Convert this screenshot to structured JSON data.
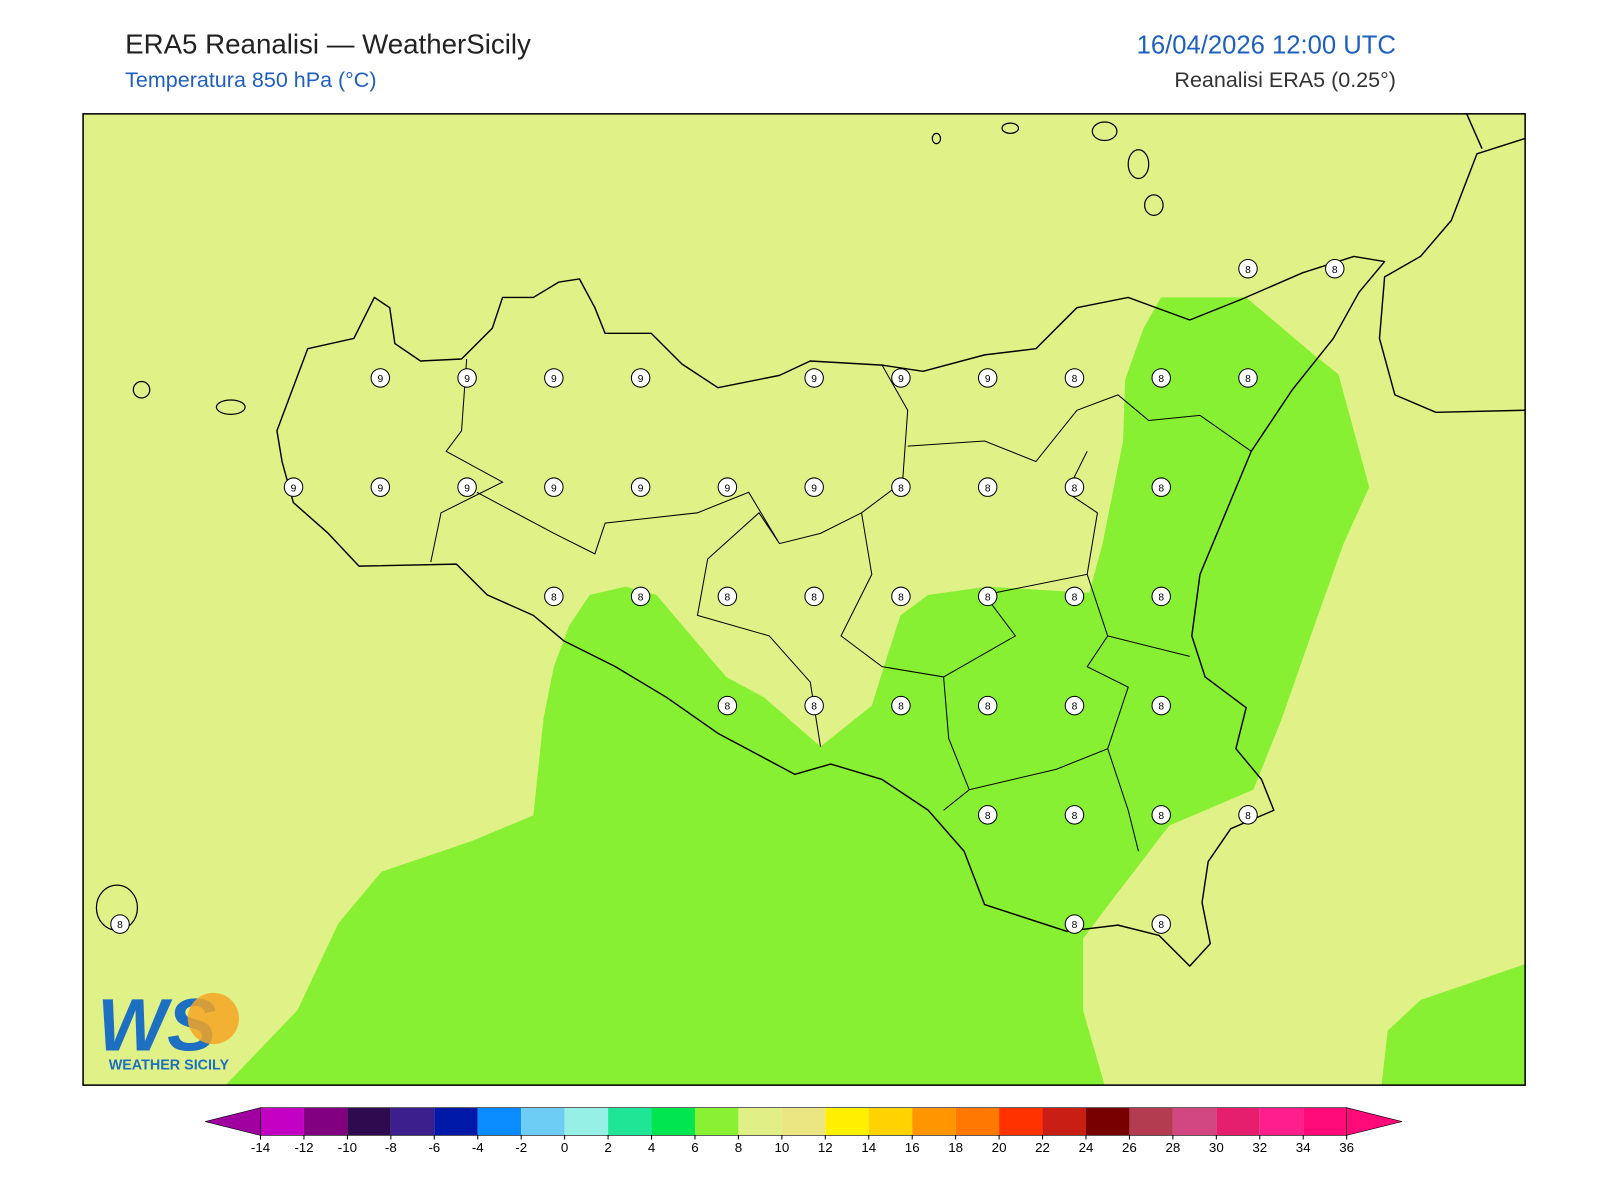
{
  "header": {
    "title": "ERA5 Reanalisi — WeatherSicily",
    "subtitle": "Temperatura 850 hPa (°C)",
    "valid_time": "16/04/2026 12:00 UTC",
    "source": "Reanalisi ERA5 (0.25°)"
  },
  "map": {
    "station_grid": [
      [
        null,
        null,
        null,
        null,
        null,
        null,
        null,
        null,
        null,
        null,
        null,
        null,
        null,
        8,
        8
      ],
      [
        null,
        null,
        null,
        9,
        9,
        9,
        9,
        null,
        9,
        9,
        9,
        8,
        8,
        8,
        null
      ],
      [
        null,
        null,
        9,
        9,
        9,
        9,
        9,
        9,
        9,
        8,
        8,
        8,
        8,
        null,
        null
      ],
      [
        null,
        null,
        null,
        null,
        null,
        8,
        8,
        8,
        8,
        8,
        8,
        8,
        8,
        null,
        null
      ],
      [
        null,
        null,
        null,
        null,
        null,
        null,
        null,
        8,
        8,
        8,
        8,
        8,
        8,
        null,
        null
      ],
      [
        null,
        null,
        null,
        null,
        null,
        null,
        null,
        null,
        null,
        null,
        8,
        8,
        8,
        8,
        null
      ],
      [
        8,
        null,
        null,
        null,
        null,
        null,
        null,
        null,
        null,
        null,
        null,
        8,
        8,
        null,
        null
      ]
    ]
  },
  "colorbar": {
    "ticks": [
      -14,
      -12,
      -10,
      -8,
      -6,
      -4,
      -2,
      0,
      2,
      4,
      6,
      8,
      10,
      12,
      14,
      16,
      18,
      20,
      22,
      24,
      26,
      28,
      30,
      32,
      34,
      36
    ],
    "colors": [
      "#a000a0",
      "#c300c3",
      "#800080",
      "#2e0a4e",
      "#3c1e8c",
      "#0018a8",
      "#0a8cff",
      "#6ecdf5",
      "#96f0e6",
      "#1ee696",
      "#00e650",
      "#8af032",
      "#e0f087",
      "#ece682",
      "#fff000",
      "#ffd200",
      "#ff9600",
      "#ff7800",
      "#ff3200",
      "#c81e14",
      "#780000",
      "#b43c50",
      "#d24682",
      "#e61e6e",
      "#ff1e8c",
      "#ff0a78",
      "#ff0a78"
    ]
  },
  "logo": {
    "mark": "WS",
    "name": "WEATHER SICILY"
  }
}
